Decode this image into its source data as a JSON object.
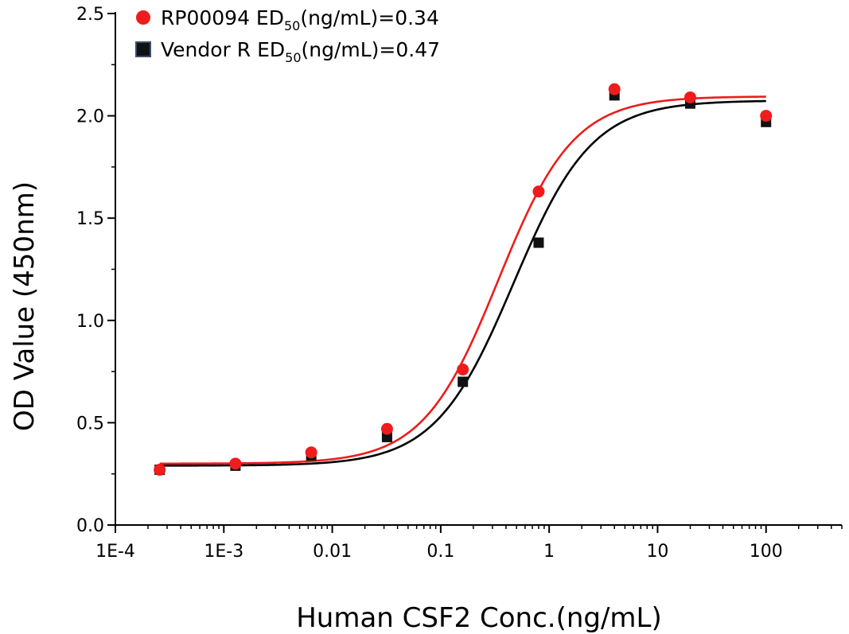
{
  "chart_data": {
    "type": "scatter",
    "title": "",
    "xlabel": "Human CSF2 Conc.(ng/mL)",
    "ylabel": "OD Value (450nm)",
    "x_scale": "log",
    "xlim": [
      0.0001,
      500
    ],
    "ylim": [
      0.0,
      2.5
    ],
    "x_ticks": [
      {
        "value": 0.0001,
        "label": "1E-4"
      },
      {
        "value": 0.001,
        "label": "1E-3"
      },
      {
        "value": 0.01,
        "label": "0.01"
      },
      {
        "value": 0.1,
        "label": "0.1"
      },
      {
        "value": 1,
        "label": "1"
      },
      {
        "value": 10,
        "label": "10"
      },
      {
        "value": 100,
        "label": "100"
      }
    ],
    "y_ticks": [
      {
        "value": 0.0,
        "label": "0.0"
      },
      {
        "value": 0.5,
        "label": "0.5"
      },
      {
        "value": 1.0,
        "label": "1.0"
      },
      {
        "value": 1.5,
        "label": "1.5"
      },
      {
        "value": 2.0,
        "label": "2.0"
      },
      {
        "value": 2.5,
        "label": "2.5"
      }
    ],
    "grid": false,
    "legend_position": "top-left",
    "series": [
      {
        "name": "RP00094",
        "ed50_prefix": "ED",
        "ed50_sub": "50",
        "ed50_suffix": "(ng/mL)=0.34",
        "marker": "circle",
        "color": "#ee1c1c",
        "x": [
          0.000256,
          0.00128,
          0.0064,
          0.032,
          0.16,
          0.8,
          4,
          20,
          100
        ],
        "y": [
          0.27,
          0.3,
          0.355,
          0.47,
          0.76,
          1.63,
          2.13,
          2.09,
          2.0
        ],
        "fit": {
          "bottom": 0.3,
          "top": 2.095,
          "ec50": 0.34,
          "hill": 1.25
        }
      },
      {
        "name": "Vendor R",
        "ed50_prefix": "ED",
        "ed50_sub": "50",
        "ed50_suffix": "(ng/mL)=0.47",
        "marker": "square",
        "color": "#111111",
        "x": [
          0.000256,
          0.00128,
          0.0064,
          0.032,
          0.16,
          0.8,
          4,
          20,
          100
        ],
        "y": [
          0.27,
          0.29,
          0.34,
          0.43,
          0.7,
          1.38,
          2.1,
          2.06,
          1.97
        ],
        "fit": {
          "bottom": 0.29,
          "top": 2.075,
          "ec50": 0.47,
          "hill": 1.2
        }
      }
    ]
  }
}
